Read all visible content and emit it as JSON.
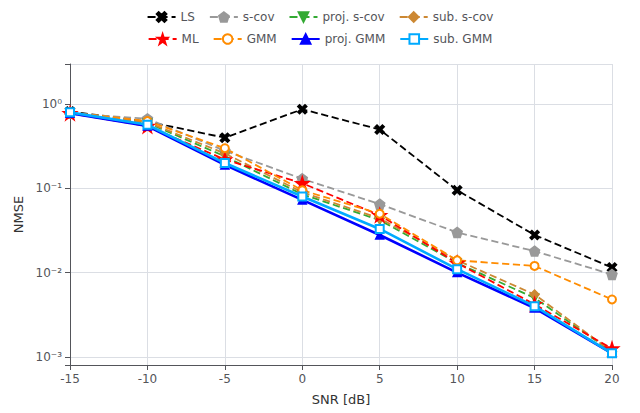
{
  "chart_data": {
    "type": "line",
    "x": [
      -15,
      -10,
      -5,
      0,
      5,
      10,
      15,
      20
    ],
    "series": [
      {
        "name": "LS",
        "color": "#000000",
        "marker": "x",
        "line_style": "dashed",
        "values": [
          0.82,
          0.62,
          0.4,
          0.87,
          0.5,
          0.095,
          0.028,
          0.0115
        ]
      },
      {
        "name": "s-cov",
        "color": "#999999",
        "marker": "pentagon",
        "line_style": "dashed",
        "values": [
          0.78,
          0.67,
          0.28,
          0.13,
          0.065,
          0.03,
          0.018,
          0.0095
        ]
      },
      {
        "name": "proj. s-cov",
        "color": "#33aa33",
        "marker": "triangle_down",
        "line_style": "dashed",
        "values": [
          0.78,
          0.6,
          0.24,
          0.085,
          0.042,
          0.013,
          0.005,
          0.00115
        ]
      },
      {
        "name": "sub. s-cov",
        "color": "#cc8833",
        "marker": "diamond",
        "line_style": "dashed",
        "values": [
          0.78,
          0.61,
          0.26,
          0.09,
          0.044,
          0.014,
          0.0055,
          0.00115
        ]
      },
      {
        "name": "ML",
        "color": "#ff0000",
        "marker": "star",
        "line_style": "dashed",
        "values": [
          0.78,
          0.55,
          0.22,
          0.115,
          0.048,
          0.013,
          0.0042,
          0.00125
        ]
      },
      {
        "name": "GMM",
        "color": "#ff8c00",
        "marker": "circle_open",
        "line_style": "dashed",
        "values": [
          0.8,
          0.63,
          0.3,
          0.095,
          0.05,
          0.014,
          0.012,
          0.0048
        ]
      },
      {
        "name": "proj. GMM",
        "color": "#0000ff",
        "marker": "triangle",
        "line_style": "solid",
        "values": [
          0.78,
          0.55,
          0.19,
          0.073,
          0.028,
          0.01,
          0.0038,
          0.0011
        ]
      },
      {
        "name": "sub. GMM",
        "color": "#00aaff",
        "marker": "square_open",
        "line_style": "solid",
        "values": [
          0.8,
          0.57,
          0.2,
          0.08,
          0.033,
          0.011,
          0.004,
          0.0011
        ]
      }
    ],
    "xlabel": "SNR [dB]",
    "ylabel": "NMSE",
    "xlim": [
      -15,
      20
    ],
    "ylim": [
      0.0008,
      3
    ],
    "xticks": [
      -15,
      -10,
      -5,
      0,
      5,
      10,
      15,
      20
    ],
    "yticks": [
      {
        "value": 0.001,
        "label": "10⁻³"
      },
      {
        "value": 0.01,
        "label": "10⁻²"
      },
      {
        "value": 0.1,
        "label": "10⁻¹"
      },
      {
        "value": 1,
        "label": "10⁰"
      }
    ],
    "log": "y",
    "grid": true,
    "legend": "top"
  }
}
